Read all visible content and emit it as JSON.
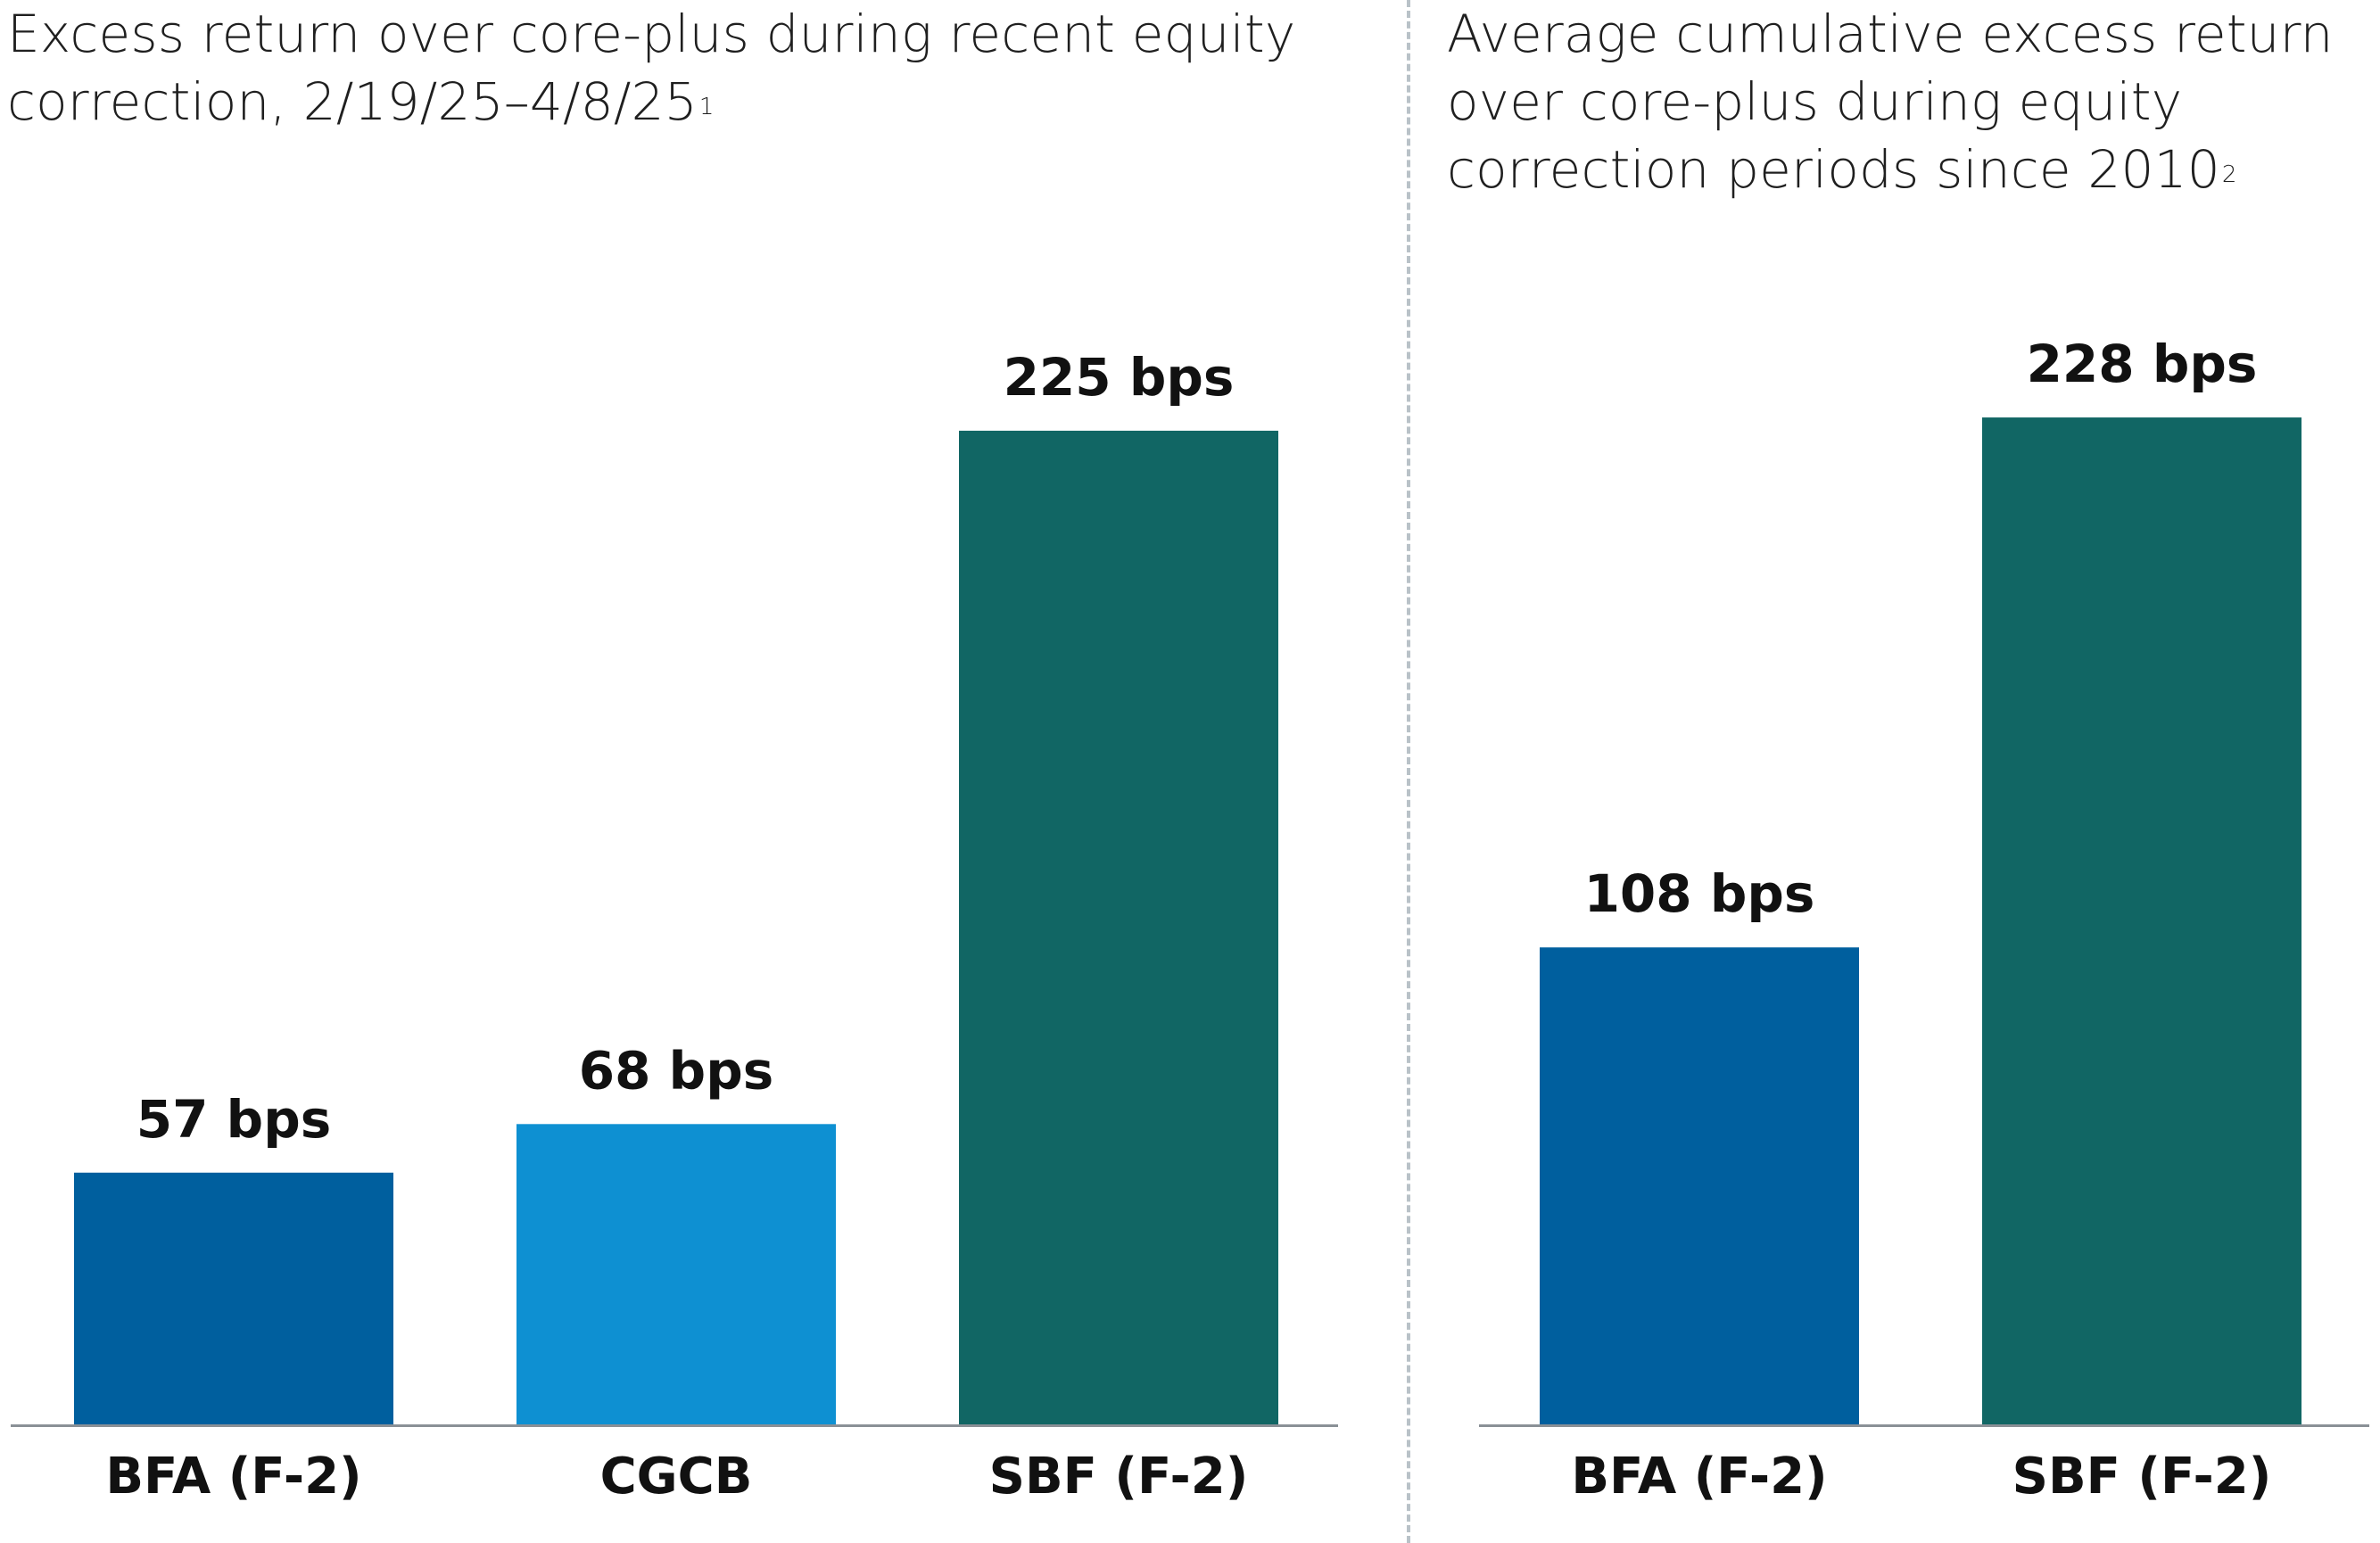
{
  "colors": {
    "dark_blue": "#005f9e",
    "light_blue": "#0e90d2",
    "teal": "#116664",
    "axis": "#8a9096",
    "divider": "#b9c2c8"
  },
  "panels": [
    {
      "title": "Excess return over core-plus during recent equity correction, 2/19/25–4/8/25",
      "title_footnote": "1"
    },
    {
      "title": "Average cumulative excess return over core-plus during equity correction periods since 2010",
      "title_footnote": "2"
    }
  ],
  "chart_data": [
    {
      "type": "bar",
      "title": "Excess return over core-plus during recent equity correction, 2/19/25–4/8/25",
      "categories": [
        "BFA (F-2)",
        "CGCB",
        "SBF (F-2)"
      ],
      "values": [
        57,
        68,
        225
      ],
      "data_labels": [
        "57 bps",
        "68 bps",
        "225 bps"
      ],
      "bar_colors": [
        "#005f9e",
        "#0e90d2",
        "#116664"
      ],
      "unit": "bps",
      "xlabel": "",
      "ylabel": "",
      "ylim": [
        0,
        268
      ],
      "grid": false,
      "legend": "none"
    },
    {
      "type": "bar",
      "title": "Average cumulative excess return over core-plus during equity correction periods since 2010",
      "categories": [
        "BFA (F-2)",
        "SBF (F-2)"
      ],
      "values": [
        108,
        228
      ],
      "data_labels": [
        "108 bps",
        "228 bps"
      ],
      "bar_colors": [
        "#005f9e",
        "#116664"
      ],
      "unit": "bps",
      "xlabel": "",
      "ylabel": "",
      "ylim": [
        0,
        268
      ],
      "grid": false,
      "legend": "none"
    }
  ]
}
